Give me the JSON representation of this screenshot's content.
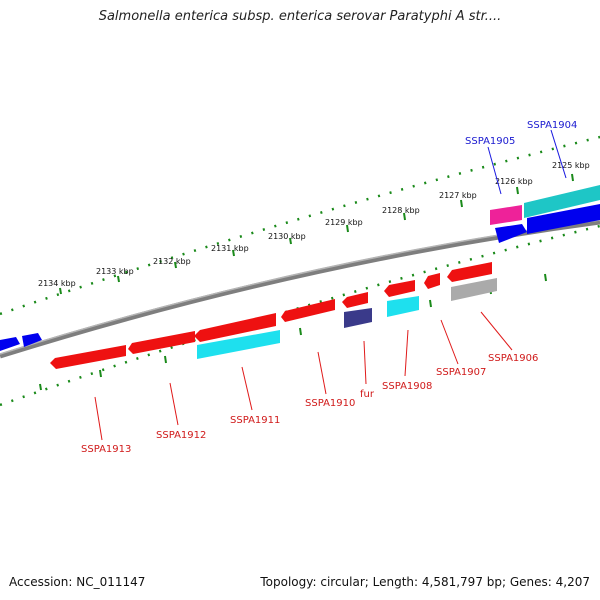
{
  "title": "Salmonella enterica subsp. enterica serovar Paratyphi A str....",
  "footer": {
    "accession": "Accession: NC_011147",
    "stats": "Topology: circular; Length: 4,581,797 bp; Genes: 4,207"
  },
  "ruler": {
    "labels": [
      "2134 kbp",
      "2133 kbp",
      "2132 kbp",
      "2131 kbp",
      "2130 kbp",
      "2129 kbp",
      "2128 kbp",
      "2127 kbp",
      "2126 kbp",
      "2125 kbp"
    ]
  },
  "colors": {
    "forward_gene": "#0000ee",
    "reverse_gene": "#ee0000",
    "rrna_like": "#00dddd",
    "pink": "#ee2299",
    "purple": "#3a3a8a",
    "grey": "#aaaaaa",
    "backbone": "#888888",
    "ruler": "#1a8a1a"
  },
  "gene_labels": {
    "top": [
      "SSPA1905",
      "SSPA1904"
    ],
    "bottom": [
      "SSPA1913",
      "SSPA1912",
      "SSPA1911",
      "SSPA1910",
      "fur",
      "SSPA1908",
      "SSPA1907",
      "SSPA1906"
    ]
  }
}
